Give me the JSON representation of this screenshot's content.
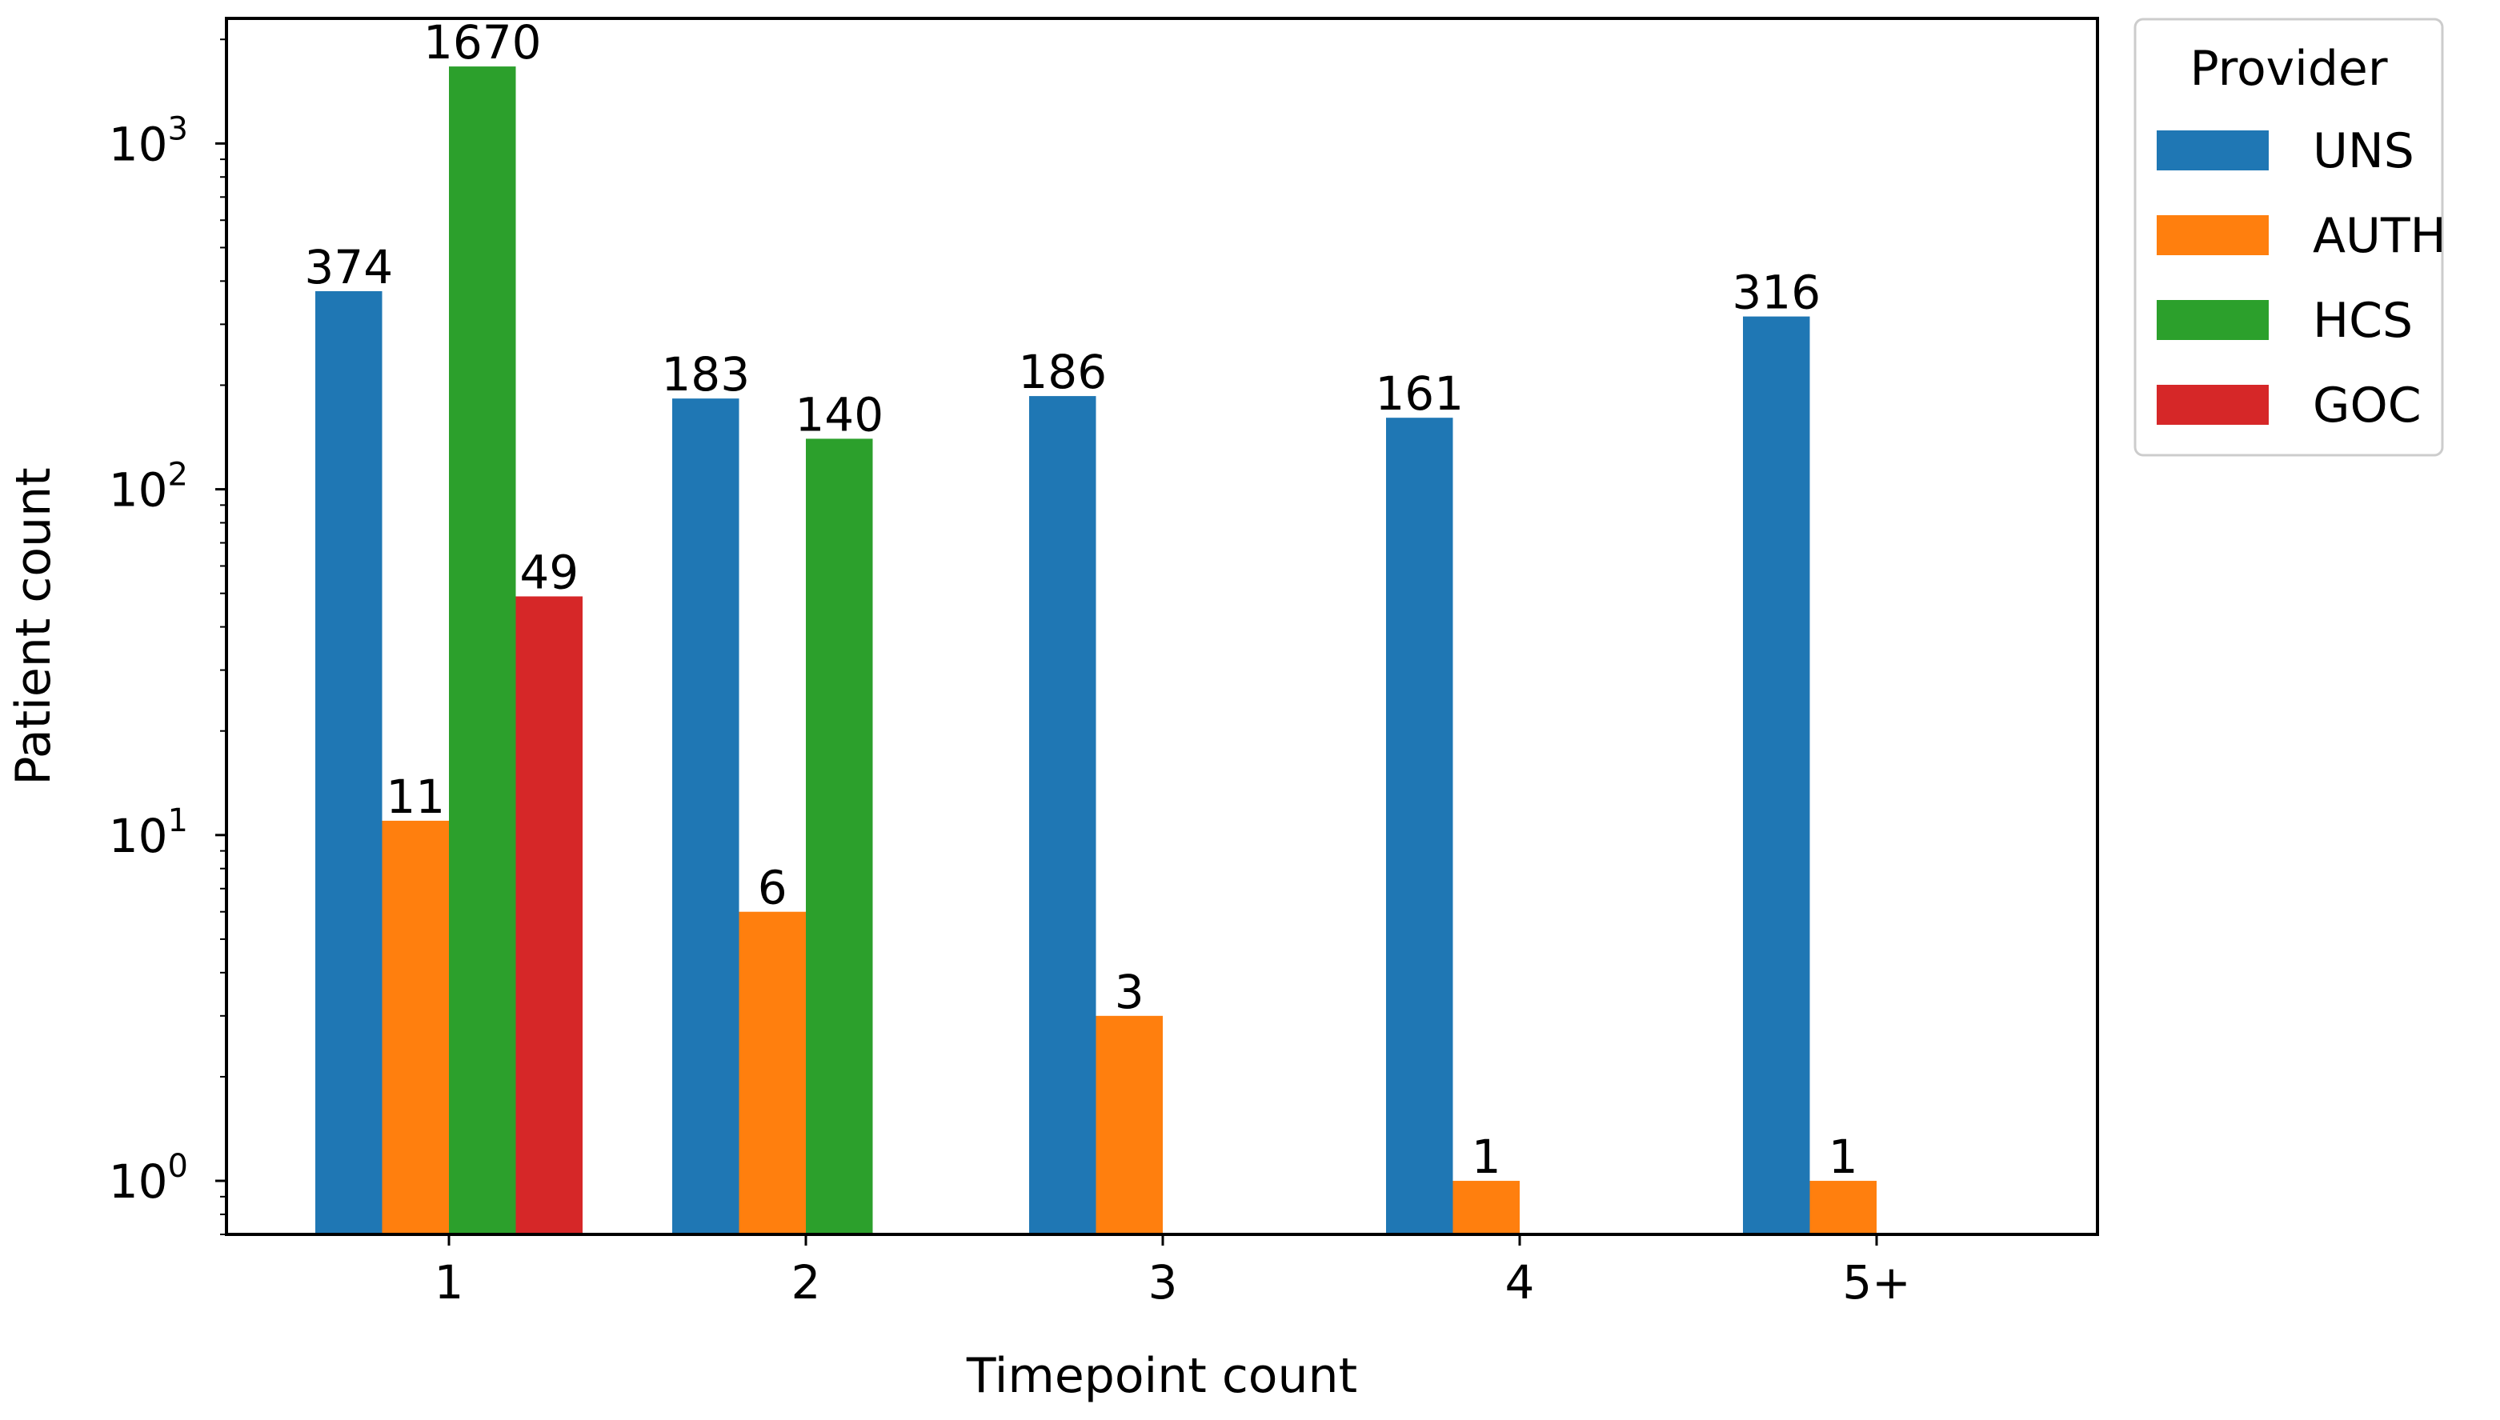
{
  "chart_data": {
    "type": "bar",
    "xlabel": "Timepoint count",
    "ylabel": "Patient count",
    "yscale": "log",
    "ylim": [
      0.7,
      2300
    ],
    "yticks": [
      {
        "value": 1,
        "base": "10",
        "exp": "0"
      },
      {
        "value": 10,
        "base": "10",
        "exp": "1"
      },
      {
        "value": 100,
        "base": "10",
        "exp": "2"
      },
      {
        "value": 1000,
        "base": "10",
        "exp": "3"
      }
    ],
    "grid": false,
    "categories": [
      "1",
      "2",
      "3",
      "4",
      "5+"
    ],
    "legend": {
      "title": "Provider",
      "placement": "outside-top-right"
    },
    "series": [
      {
        "name": "UNS",
        "color": "#1f77b4",
        "values": [
          374,
          183,
          186,
          161,
          316
        ],
        "labels": [
          "374",
          "183",
          "186",
          "161",
          "316"
        ]
      },
      {
        "name": "AUTH",
        "color": "#ff7f0e",
        "values": [
          11,
          6,
          3,
          1,
          1
        ],
        "labels": [
          "11",
          "6",
          "3",
          "1",
          "1"
        ]
      },
      {
        "name": "HCS",
        "color": "#2ca02c",
        "values": [
          1670,
          140,
          null,
          null,
          null
        ],
        "labels": [
          "1670",
          "140",
          null,
          null,
          null
        ]
      },
      {
        "name": "GOC",
        "color": "#d62728",
        "values": [
          49,
          null,
          null,
          null,
          null
        ],
        "labels": [
          "49",
          null,
          null,
          null,
          null
        ]
      }
    ]
  }
}
